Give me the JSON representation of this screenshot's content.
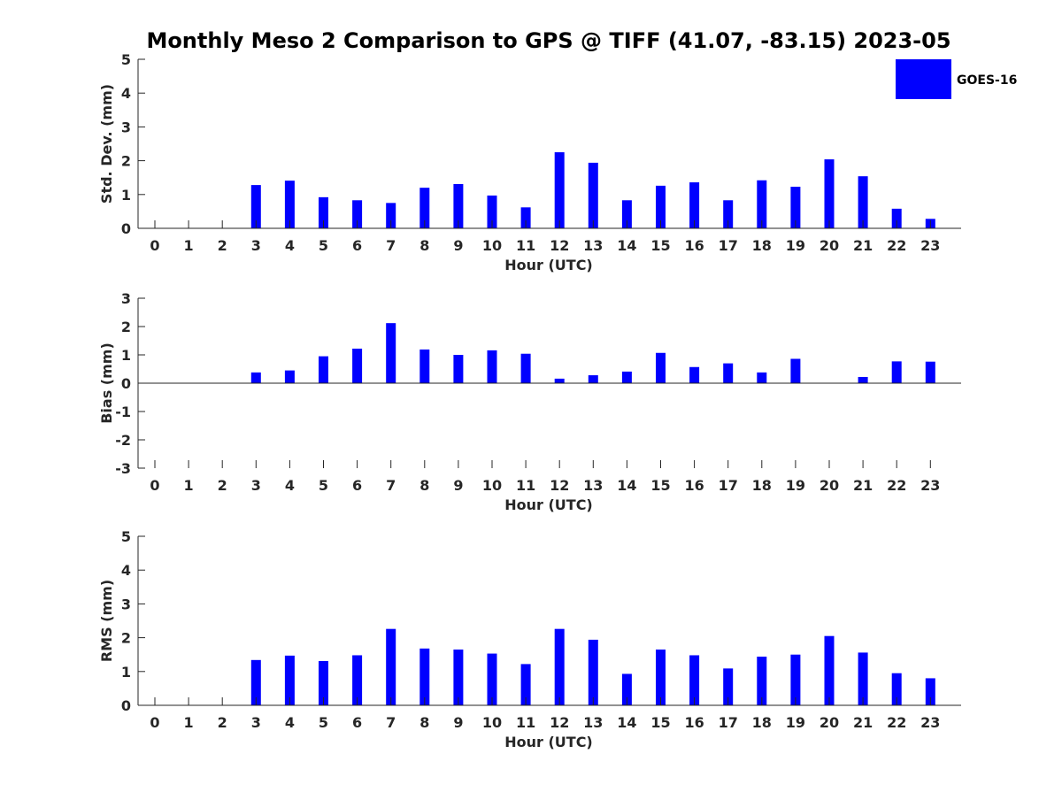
{
  "title": "Monthly Meso 2 Comparison to GPS @ TIFF (41.07, -83.15) 2023-05",
  "legend": {
    "label": "GOES-16",
    "color": "#0000ff"
  },
  "chart_data": [
    {
      "type": "bar",
      "title": "Monthly Meso 2 Comparison to GPS @ TIFF (41.07, -83.15) 2023-05",
      "xlabel": "Hour (UTC)",
      "ylabel": "Std. Dev. (mm)",
      "ylim": [
        0,
        5
      ],
      "yticks": [
        0,
        1,
        2,
        3,
        4,
        5
      ],
      "categories": [
        "0",
        "1",
        "2",
        "3",
        "4",
        "5",
        "6",
        "7",
        "8",
        "9",
        "10",
        "11",
        "12",
        "13",
        "14",
        "15",
        "16",
        "17",
        "18",
        "19",
        "20",
        "21",
        "22",
        "23"
      ],
      "series": [
        {
          "name": "GOES-16",
          "values": [
            0,
            0,
            0,
            1.28,
            1.41,
            0.92,
            0.83,
            0.75,
            1.2,
            1.31,
            0.97,
            0.62,
            2.25,
            1.94,
            0.83,
            1.26,
            1.36,
            0.83,
            1.42,
            1.23,
            2.04,
            1.54,
            0.58,
            0.28
          ]
        }
      ]
    },
    {
      "type": "bar",
      "xlabel": "Hour (UTC)",
      "ylabel": "Bias (mm)",
      "ylim": [
        -3,
        3
      ],
      "yticks": [
        -3,
        -2,
        -1,
        0,
        1,
        2,
        3
      ],
      "categories": [
        "0",
        "1",
        "2",
        "3",
        "4",
        "5",
        "6",
        "7",
        "8",
        "9",
        "10",
        "11",
        "12",
        "13",
        "14",
        "15",
        "16",
        "17",
        "18",
        "19",
        "20",
        "21",
        "22",
        "23"
      ],
      "series": [
        {
          "name": "GOES-16",
          "values": [
            0,
            0,
            0,
            0.38,
            0.45,
            0.95,
            1.22,
            2.12,
            1.19,
            1.0,
            1.16,
            1.04,
            0.16,
            0.28,
            0.41,
            1.07,
            0.57,
            0.7,
            0.38,
            0.86,
            0,
            0.22,
            0.77,
            0.76
          ]
        }
      ]
    },
    {
      "type": "bar",
      "xlabel": "Hour (UTC)",
      "ylabel": "RMS (mm)",
      "ylim": [
        0,
        5
      ],
      "yticks": [
        0,
        1,
        2,
        3,
        4,
        5
      ],
      "categories": [
        "0",
        "1",
        "2",
        "3",
        "4",
        "5",
        "6",
        "7",
        "8",
        "9",
        "10",
        "11",
        "12",
        "13",
        "14",
        "15",
        "16",
        "17",
        "18",
        "19",
        "20",
        "21",
        "22",
        "23"
      ],
      "series": [
        {
          "name": "GOES-16",
          "values": [
            0,
            0,
            0,
            1.34,
            1.47,
            1.31,
            1.48,
            2.26,
            1.68,
            1.65,
            1.53,
            1.22,
            2.26,
            1.94,
            0.93,
            1.65,
            1.48,
            1.09,
            1.44,
            1.5,
            2.05,
            1.56,
            0.95,
            0.8
          ]
        }
      ]
    }
  ]
}
